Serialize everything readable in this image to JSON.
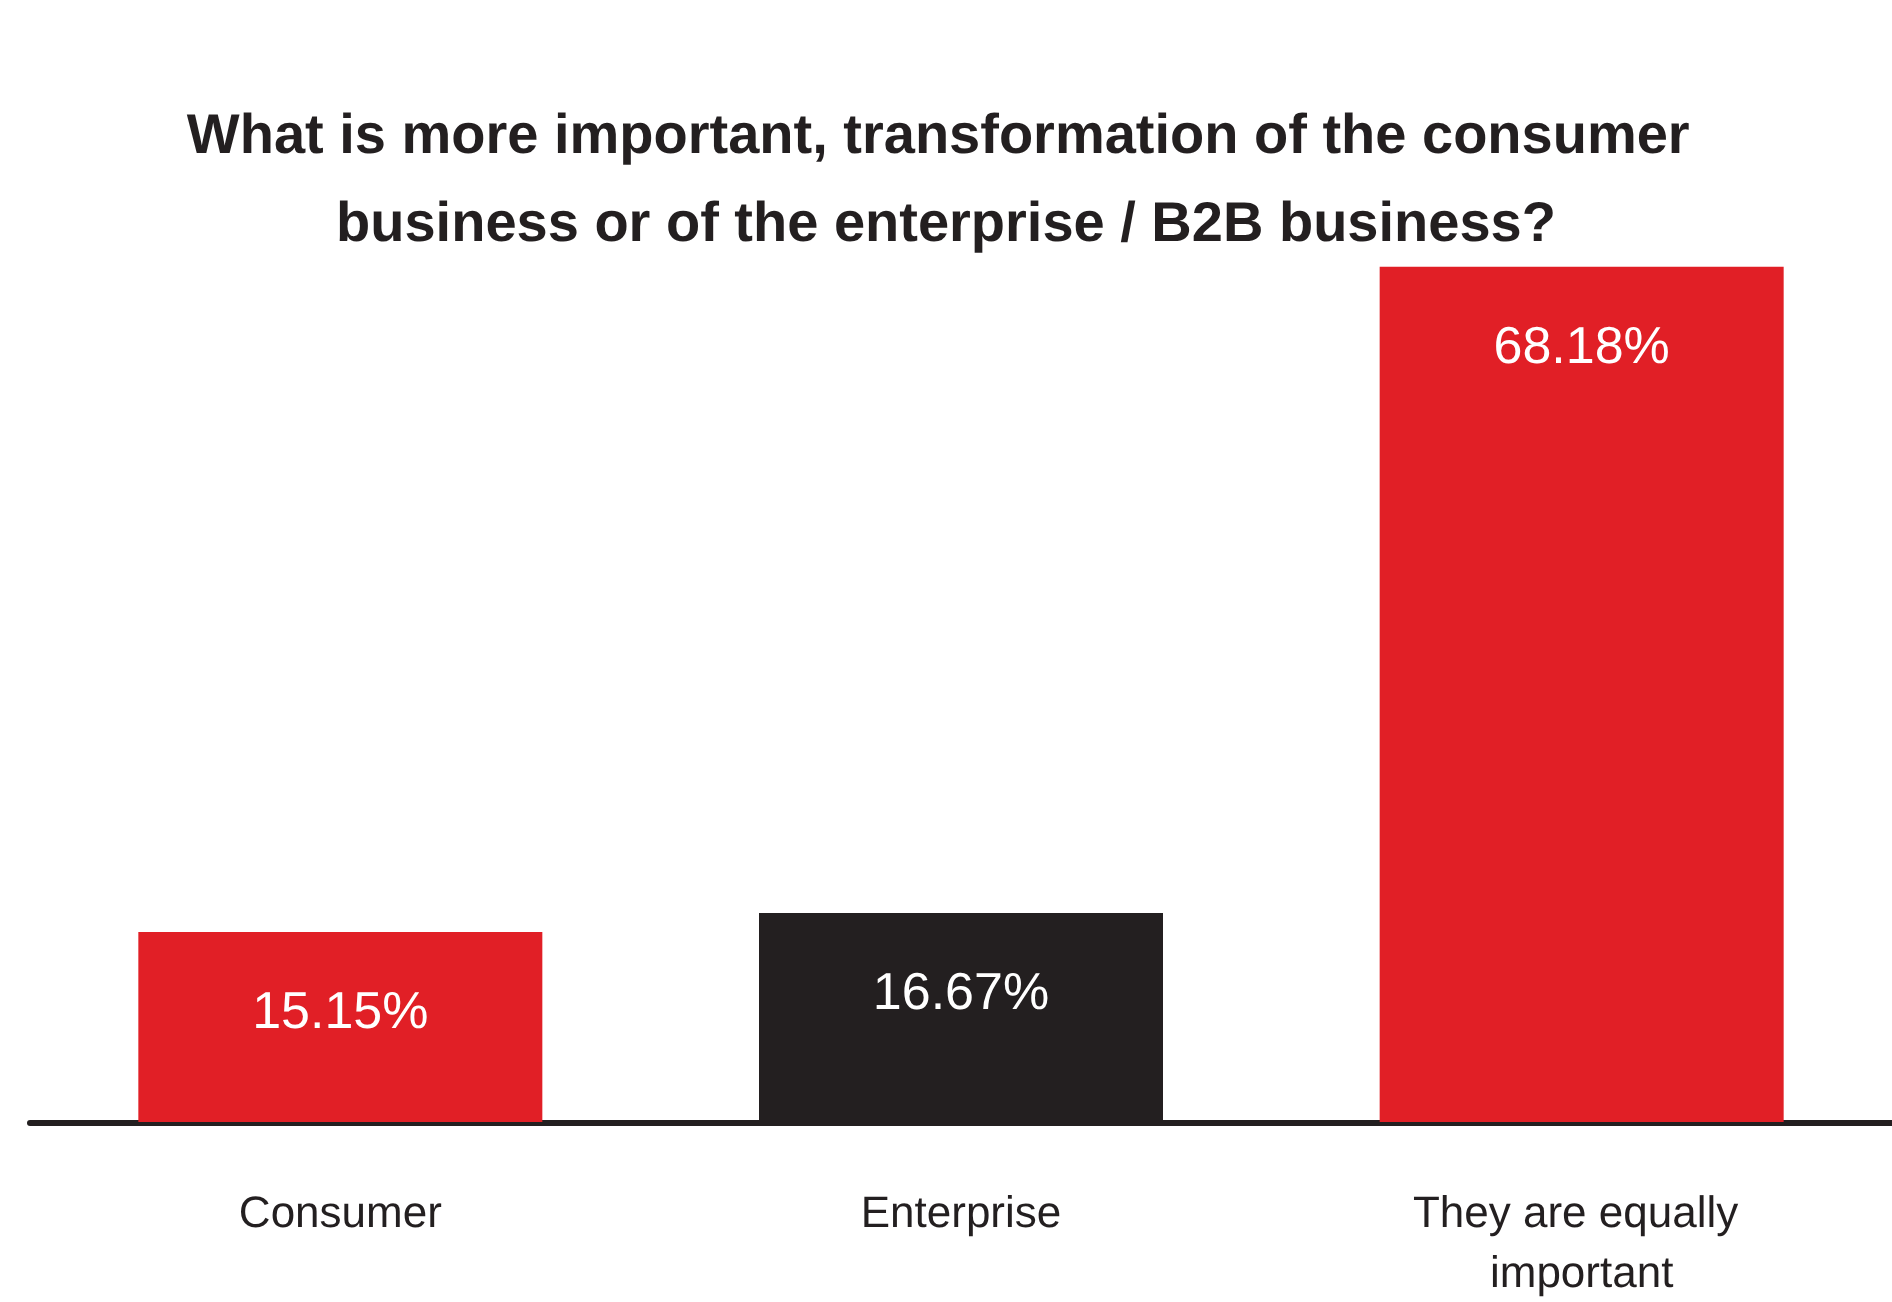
{
  "chart_data": {
    "type": "bar",
    "title": "What is more important, transformation of the consumer business or of the enterprise / B2B business?",
    "categories": [
      "Consumer",
      "Enterprise",
      "They are equally important"
    ],
    "values": [
      15.15,
      16.67,
      68.18
    ],
    "value_labels": [
      "15.15%",
      "16.67%",
      "68.18%"
    ],
    "colors": [
      "#e11f26",
      "#231f20",
      "#e11f26"
    ]
  }
}
